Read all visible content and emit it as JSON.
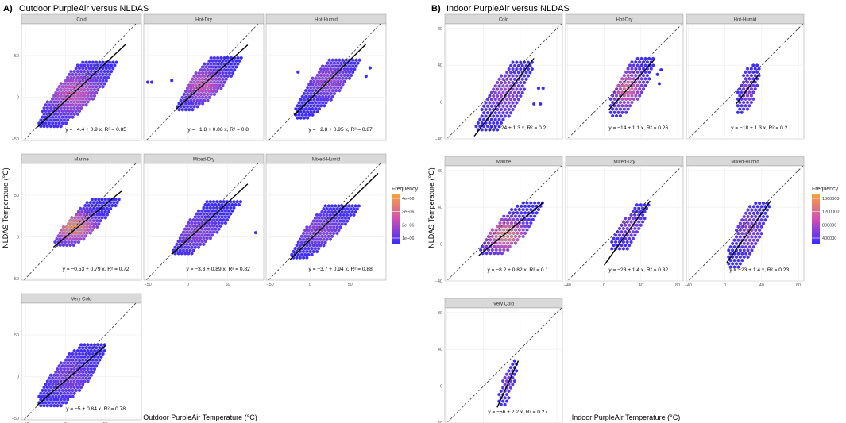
{
  "figure": {
    "left_label": "A)",
    "left_title": "Outdoor PurpleAir versus NLDAS",
    "right_label": "B)",
    "right_title": "Indoor PurpleAir versus NLDAS",
    "left_xlabel": "Outdoor PurpleAir Temperature (°C)",
    "right_xlabel": "Indoor PurpleAir Temperature (°C)",
    "ylabel": "NLDAS Temperature (°C)",
    "legend_title": "Frequency"
  },
  "colors": {
    "low": "#3b2bff",
    "mid": "#d14fb5",
    "high": "#f5a23c",
    "panel_bg": "#ffffff",
    "grid": "#ececec",
    "strip_bg": "#d9d9d9",
    "fit_line": "#000000",
    "identity_line": "#333333"
  },
  "chart_data": [
    {
      "type": "heatmap",
      "subtype": "hexbin",
      "title": "Outdoor PurpleAir versus NLDAS",
      "xlabel": "Outdoor PurpleAir Temperature (°C)",
      "ylabel": "NLDAS Temperature (°C)",
      "xlim": [
        -55,
        95
      ],
      "ylim": [
        -52,
        88
      ],
      "xticks": [
        -50,
        0,
        50
      ],
      "yticks": [
        -50,
        0,
        50
      ],
      "legend": {
        "title": "Frequency",
        "labels": [
          "4e+06",
          "3e+06",
          "2e+06",
          "1e+06"
        ],
        "min": 0,
        "max": 4500000
      },
      "panels": [
        {
          "name": "Cold",
          "fit": {
            "intercept": -4.4,
            "slope": 0.9
          },
          "annotation": "y = −4.4 + 0.9 x, R² = 0.85",
          "x_range": [
            -35,
            75
          ],
          "y_range": [
            -35,
            45
          ],
          "peak": [
            10,
            5
          ],
          "intensity": 0.55,
          "extra_points": []
        },
        {
          "name": "Hot-Dry",
          "fit": {
            "intercept": -1.8,
            "slope": 0.86
          },
          "annotation": "y = −1.8 + 0.86 x, R² = 0.8",
          "x_range": [
            -15,
            75
          ],
          "y_range": [
            -15,
            50
          ],
          "peak": [
            18,
            15
          ],
          "intensity": 0.55,
          "extra_points": [
            [
              -50,
              18
            ],
            [
              -45,
              18
            ],
            [
              -20,
              20
            ]
          ]
        },
        {
          "name": "Hot-Humid",
          "fit": {
            "intercept": -2.8,
            "slope": 0.95
          },
          "annotation": "y = −2.8 + 0.95 x, R² = 0.87",
          "x_range": [
            -20,
            70
          ],
          "y_range": [
            -25,
            45
          ],
          "peak": [
            22,
            20
          ],
          "intensity": 0.35,
          "extra_points": [
            [
              70,
              25
            ],
            [
              75,
              35
            ],
            [
              -15,
              30
            ]
          ]
        },
        {
          "name": "Marine",
          "fit": {
            "intercept": -0.53,
            "slope": 0.79
          },
          "annotation": "y = −0.53 + 0.79 x, R² = 0.72",
          "x_range": [
            -15,
            70
          ],
          "y_range": [
            -10,
            45
          ],
          "peak": [
            10,
            12
          ],
          "intensity": 0.95,
          "extra_points": []
        },
        {
          "name": "Mixed-Dry",
          "fit": {
            "intercept": -3.3,
            "slope": 0.89
          },
          "annotation": "y = −3.3 + 0.89 x, R² = 0.82",
          "x_range": [
            -20,
            75
          ],
          "y_range": [
            -20,
            45
          ],
          "peak": [
            10,
            5
          ],
          "intensity": 0.3,
          "extra_points": [
            [
              85,
              5
            ]
          ]
        },
        {
          "name": "Mixed-Humid",
          "fit": {
            "intercept": -3.7,
            "slope": 0.94
          },
          "annotation": "y = −3.7 + 0.94 x, R² = 0.88",
          "x_range": [
            -25,
            85
          ],
          "y_range": [
            -25,
            40
          ],
          "peak": [
            10,
            8
          ],
          "intensity": 0.3,
          "extra_points": []
        },
        {
          "name": "Very Cold",
          "fit": {
            "intercept": -5,
            "slope": 0.84
          },
          "annotation": "y = −5 + 0.84 x, R² = 0.78",
          "x_range": [
            -35,
            50
          ],
          "y_range": [
            -35,
            40
          ],
          "peak": [
            5,
            0
          ],
          "intensity": 0.25,
          "extra_points": []
        }
      ]
    },
    {
      "type": "heatmap",
      "subtype": "hexbin",
      "title": "Indoor PurpleAir versus NLDAS",
      "xlabel": "Indoor PurpleAir Temperature (°C)",
      "ylabel": "NLDAS Temperature (°C)",
      "xlim": [
        -42,
        86
      ],
      "ylim": [
        -40,
        85
      ],
      "xticks": [
        -40,
        0,
        40,
        80
      ],
      "yticks": [
        -40,
        0,
        40,
        80
      ],
      "legend": {
        "title": "Frequency",
        "labels": [
          "1600000",
          "1200000",
          "800000",
          "400000"
        ],
        "min": 0,
        "max": 1800000
      },
      "panels": [
        {
          "name": "Cold",
          "fit": {
            "intercept": -24,
            "slope": 1.3
          },
          "annotation": "y = −24 + 1.3 x, R² = 0.2",
          "x_range": [
            -10,
            55
          ],
          "y_range": [
            -30,
            45
          ],
          "peak": [
            22,
            12
          ],
          "intensity": 0.35,
          "extra_points": [
            [
              60,
              15
            ],
            [
              65,
              15
            ],
            [
              55,
              -2
            ],
            [
              62,
              -2
            ]
          ]
        },
        {
          "name": "Hot-Dry",
          "fit": {
            "intercept": -14,
            "slope": 1.1
          },
          "annotation": "y = −14 + 1.1 x, R² = 0.26",
          "x_range": [
            5,
            55
          ],
          "y_range": [
            -15,
            50
          ],
          "peak": [
            25,
            15
          ],
          "intensity": 0.7,
          "extra_points": [
            [
              60,
              20
            ],
            [
              62,
              35
            ],
            [
              58,
              30
            ]
          ]
        },
        {
          "name": "Hot-Humid",
          "fit": {
            "intercept": -18,
            "slope": 1.3
          },
          "annotation": "y = −18 + 1.3 x, R² = 0.2",
          "x_range": [
            12,
            38
          ],
          "y_range": [
            -15,
            45
          ],
          "peak": [
            25,
            12
          ],
          "intensity": 0.3,
          "extra_points": []
        },
        {
          "name": "Marine",
          "fit": {
            "intercept": -8.2,
            "slope": 0.82
          },
          "annotation": "y = −8.2 + 0.82 x, R² = 0.1",
          "x_range": [
            -5,
            65
          ],
          "y_range": [
            -10,
            45
          ],
          "peak": [
            24,
            10
          ],
          "intensity": 0.9,
          "extra_points": []
        },
        {
          "name": "Mixed-Dry",
          "fit": {
            "intercept": -23,
            "slope": 1.4
          },
          "annotation": "y = −23 + 1.4 x, R² = 0.32",
          "x_range": [
            0,
            50
          ],
          "y_range": [
            -5,
            45
          ],
          "peak": [
            28,
            20
          ],
          "intensity": 0.3,
          "extra_points": []
        },
        {
          "name": "Mixed-Humid",
          "fit": {
            "intercept": -23,
            "slope": 1.4
          },
          "annotation": "y = −23 + 1.4 x, R² = 0.23",
          "x_range": [
            2,
            50
          ],
          "y_range": [
            -25,
            45
          ],
          "peak": [
            26,
            15
          ],
          "intensity": 0.3,
          "extra_points": []
        },
        {
          "name": "Very Cold",
          "fit": {
            "intercept": -56,
            "slope": 2.2
          },
          "annotation": "y = −56 + 2.2 x, R² = 0.27",
          "x_range": [
            15,
            38
          ],
          "y_range": [
            -20,
            30
          ],
          "peak": [
            26,
            5
          ],
          "intensity": 0.25,
          "extra_points": []
        }
      ]
    }
  ]
}
